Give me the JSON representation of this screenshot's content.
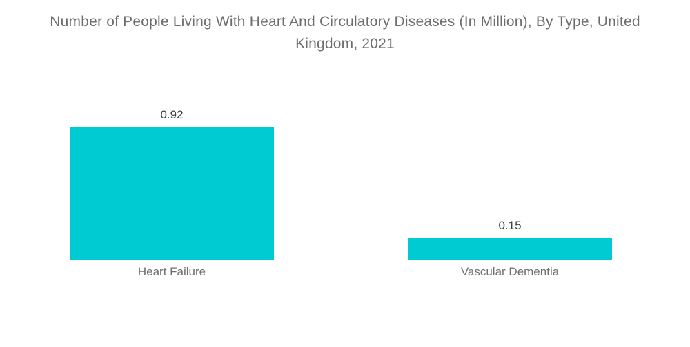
{
  "title": {
    "line1": "Number of People Living With Heart And Circulatory Diseases (In Million), By Type, United",
    "line2": "Kingdom, 2021"
  },
  "colors": {
    "bar": "#00CBD2",
    "title_text": "#6d6d6d",
    "value_label_text": "#3f3f3f",
    "category_label_text": "#6e6e6e",
    "background": "#ffffff"
  },
  "chart_data": {
    "type": "bar",
    "title": "Number of People Living With Heart And Circulatory Diseases (In Million), By Type, United Kingdom, 2021",
    "categories": [
      "Heart Failure",
      "Vascular Dementia"
    ],
    "values": [
      0.92,
      0.15
    ],
    "value_labels": [
      "0.92",
      "0.15"
    ],
    "xlabel": "",
    "ylabel": "",
    "ylim": [
      0,
      1.0
    ],
    "grid": false,
    "legend": false,
    "axes_visible": false,
    "orientation": "vertical",
    "bar_color": "#00CBD2"
  }
}
